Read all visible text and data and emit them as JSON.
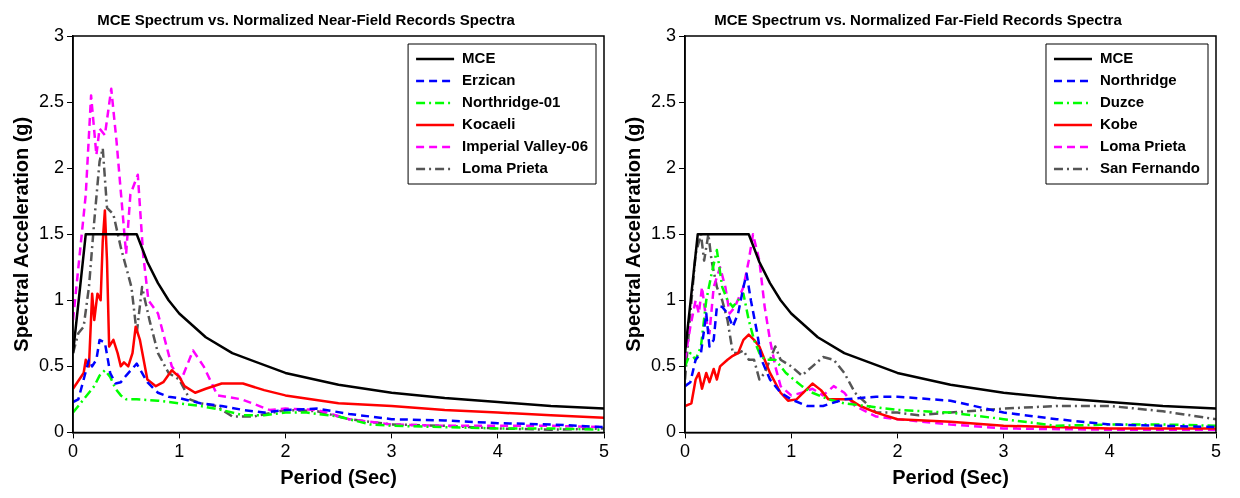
{
  "chart_data": [
    {
      "type": "line",
      "title": "MCE Spectrum vs. Normalized Near-Field Records Spectra",
      "xlabel": "Period (Sec)",
      "ylabel": "Spectral Acceleration (g)",
      "xlim": [
        0,
        5
      ],
      "ylim": [
        0,
        3
      ],
      "xticks": [
        0,
        1,
        2,
        3,
        4,
        5
      ],
      "yticks": [
        0,
        0.5,
        1,
        1.5,
        2,
        2.5,
        3
      ],
      "legend": "top right",
      "series": [
        {
          "name": "MCE",
          "color": "#000000",
          "line_style": "solid",
          "x": [
            0,
            0.12,
            0.6,
            0.7,
            0.8,
            0.9,
            1,
            1.25,
            1.5,
            2,
            2.5,
            3,
            3.5,
            4,
            4.5,
            5
          ],
          "values": [
            0.6,
            1.5,
            1.5,
            1.29,
            1.13,
            1.0,
            0.9,
            0.72,
            0.6,
            0.45,
            0.36,
            0.3,
            0.26,
            0.23,
            0.2,
            0.18
          ]
        },
        {
          "name": "Erzican",
          "color": "#0000ff",
          "line_style": "dashed",
          "x": [
            0,
            0.05,
            0.1,
            0.15,
            0.18,
            0.22,
            0.25,
            0.3,
            0.35,
            0.4,
            0.45,
            0.5,
            0.6,
            0.65,
            0.7,
            0.8,
            0.9,
            1.0,
            1.2,
            1.4,
            1.6,
            1.8,
            2,
            2.3,
            2.6,
            3,
            3.5,
            4,
            4.5,
            5
          ],
          "values": [
            0.23,
            0.25,
            0.4,
            0.55,
            0.5,
            0.55,
            0.7,
            0.68,
            0.45,
            0.37,
            0.38,
            0.43,
            0.52,
            0.45,
            0.38,
            0.3,
            0.27,
            0.26,
            0.22,
            0.2,
            0.17,
            0.15,
            0.17,
            0.18,
            0.14,
            0.1,
            0.09,
            0.07,
            0.06,
            0.04
          ]
        },
        {
          "name": "Northridge-01",
          "color": "#00ff00",
          "line_style": "dashdot",
          "x": [
            0,
            0.05,
            0.1,
            0.15,
            0.2,
            0.25,
            0.3,
            0.35,
            0.4,
            0.45,
            0.5,
            0.6,
            0.8,
            1.0,
            1.2,
            1.4,
            1.6,
            1.8,
            2.0,
            2.2,
            2.5,
            2.8,
            3,
            3.5,
            4,
            4.5,
            5
          ],
          "values": [
            0.15,
            0.2,
            0.25,
            0.3,
            0.35,
            0.43,
            0.47,
            0.42,
            0.33,
            0.28,
            0.25,
            0.25,
            0.24,
            0.22,
            0.2,
            0.17,
            0.13,
            0.13,
            0.15,
            0.15,
            0.12,
            0.06,
            0.05,
            0.04,
            0.03,
            0.03,
            0.02
          ]
        },
        {
          "name": "Kocaeli",
          "color": "#ff0000",
          "line_style": "solid",
          "x": [
            0,
            0.1,
            0.12,
            0.15,
            0.18,
            0.2,
            0.23,
            0.26,
            0.28,
            0.3,
            0.32,
            0.34,
            0.38,
            0.42,
            0.45,
            0.48,
            0.52,
            0.56,
            0.59,
            0.63,
            0.7,
            0.78,
            0.85,
            0.93,
            1.0,
            1.05,
            1.15,
            1.25,
            1.4,
            1.6,
            1.8,
            2,
            2.5,
            3,
            3.5,
            4,
            4.5,
            5
          ],
          "values": [
            0.33,
            0.45,
            0.55,
            0.5,
            1.05,
            0.85,
            1.05,
            1.0,
            1.45,
            1.68,
            1.3,
            0.65,
            0.7,
            0.6,
            0.5,
            0.53,
            0.5,
            0.6,
            0.8,
            0.7,
            0.4,
            0.35,
            0.38,
            0.47,
            0.42,
            0.35,
            0.3,
            0.33,
            0.37,
            0.37,
            0.32,
            0.28,
            0.22,
            0.2,
            0.17,
            0.15,
            0.13,
            0.11
          ]
        },
        {
          "name": "Imperial Valley-06",
          "color": "#ff00ff",
          "line_style": "dashed",
          "x": [
            0,
            0.12,
            0.17,
            0.22,
            0.25,
            0.3,
            0.36,
            0.41,
            0.5,
            0.54,
            0.61,
            0.66,
            0.71,
            0.8,
            0.93,
            1.02,
            1.13,
            1.23,
            1.36,
            1.59,
            1.85,
            2.0,
            2.3,
            2.6,
            3,
            3.5,
            4,
            4.5,
            5
          ],
          "values": [
            0.85,
            1.8,
            2.55,
            2.1,
            2.3,
            2.25,
            2.6,
            2.2,
            1.35,
            1.8,
            1.95,
            1.35,
            1.0,
            0.9,
            0.5,
            0.4,
            0.62,
            0.5,
            0.28,
            0.25,
            0.17,
            0.18,
            0.17,
            0.1,
            0.06,
            0.05,
            0.05,
            0.05,
            0.04
          ]
        },
        {
          "name": "Loma Prieta",
          "color": "#555555",
          "line_style": "dashdot",
          "x": [
            0,
            0.05,
            0.1,
            0.15,
            0.2,
            0.25,
            0.28,
            0.32,
            0.38,
            0.45,
            0.5,
            0.55,
            0.6,
            0.65,
            0.72,
            0.8,
            0.9,
            1.0,
            1.1,
            1.2,
            1.35,
            1.5,
            1.7,
            2,
            2.3,
            2.6,
            3,
            3.5,
            4,
            4.5,
            5
          ],
          "values": [
            0.6,
            0.75,
            0.8,
            1.1,
            1.6,
            2.05,
            2.15,
            1.7,
            1.65,
            1.4,
            1.25,
            1.1,
            0.75,
            1.1,
            0.85,
            0.6,
            0.45,
            0.4,
            0.25,
            0.22,
            0.2,
            0.12,
            0.12,
            0.17,
            0.16,
            0.1,
            0.06,
            0.05,
            0.03,
            0.02,
            0.03
          ]
        }
      ]
    },
    {
      "type": "line",
      "title": "MCE Spectrum vs. Normalized Far-Field Records Spectra",
      "xlabel": "Period (Sec)",
      "ylabel": "Spectral Acceleration (g)",
      "xlim": [
        0,
        5
      ],
      "ylim": [
        0,
        3
      ],
      "xticks": [
        0,
        1,
        2,
        3,
        4,
        5
      ],
      "yticks": [
        0,
        0.5,
        1,
        1.5,
        2,
        2.5,
        3
      ],
      "legend": "top right",
      "series": [
        {
          "name": "MCE",
          "color": "#000000",
          "line_style": "solid",
          "x": [
            0,
            0.12,
            0.6,
            0.7,
            0.8,
            0.9,
            1,
            1.25,
            1.5,
            2,
            2.5,
            3,
            3.5,
            4,
            4.5,
            5
          ],
          "values": [
            0.6,
            1.5,
            1.5,
            1.29,
            1.13,
            1.0,
            0.9,
            0.72,
            0.6,
            0.45,
            0.36,
            0.3,
            0.26,
            0.23,
            0.2,
            0.18
          ]
        },
        {
          "name": "Northridge",
          "color": "#0000ff",
          "line_style": "dashed",
          "x": [
            0,
            0.05,
            0.1,
            0.15,
            0.2,
            0.23,
            0.27,
            0.3,
            0.35,
            0.4,
            0.45,
            0.5,
            0.55,
            0.58,
            0.62,
            0.68,
            0.72,
            0.8,
            0.9,
            1.0,
            1.15,
            1.3,
            1.5,
            1.8,
            2,
            2.5,
            3,
            3.5,
            4,
            4.5,
            5
          ],
          "values": [
            0.35,
            0.38,
            0.55,
            0.6,
            0.9,
            0.65,
            0.7,
            0.95,
            0.95,
            0.9,
            0.8,
            0.9,
            1.1,
            1.2,
            1.0,
            0.75,
            0.55,
            0.4,
            0.3,
            0.25,
            0.2,
            0.2,
            0.25,
            0.27,
            0.27,
            0.24,
            0.15,
            0.1,
            0.06,
            0.05,
            0.04
          ]
        },
        {
          "name": "Duzce",
          "color": "#00ff00",
          "line_style": "dashdot",
          "x": [
            0,
            0.05,
            0.1,
            0.15,
            0.2,
            0.25,
            0.3,
            0.35,
            0.4,
            0.45,
            0.5,
            0.55,
            0.6,
            0.65,
            0.7,
            0.75,
            0.85,
            0.95,
            1.1,
            1.2,
            1.35,
            1.5,
            1.7,
            2,
            2.5,
            3,
            3.5,
            4,
            4.5,
            5
          ],
          "values": [
            0.5,
            0.6,
            0.55,
            0.65,
            1.0,
            1.2,
            1.38,
            1.1,
            1.0,
            0.95,
            1.0,
            1.05,
            0.85,
            0.7,
            0.6,
            0.55,
            0.55,
            0.45,
            0.35,
            0.3,
            0.25,
            0.22,
            0.2,
            0.17,
            0.15,
            0.1,
            0.05,
            0.06,
            0.06,
            0.05
          ]
        },
        {
          "name": "Kobe",
          "color": "#ff0000",
          "line_style": "solid",
          "x": [
            0,
            0.06,
            0.1,
            0.13,
            0.16,
            0.2,
            0.23,
            0.27,
            0.3,
            0.33,
            0.4,
            0.45,
            0.5,
            0.55,
            0.6,
            0.65,
            0.7,
            0.75,
            0.8,
            0.9,
            0.97,
            1.05,
            1.15,
            1.2,
            1.28,
            1.35,
            1.45,
            1.55,
            1.65,
            1.8,
            2,
            2.5,
            3,
            4,
            5
          ],
          "values": [
            0.2,
            0.22,
            0.4,
            0.45,
            0.33,
            0.45,
            0.38,
            0.48,
            0.4,
            0.5,
            0.55,
            0.58,
            0.6,
            0.7,
            0.74,
            0.7,
            0.65,
            0.55,
            0.45,
            0.3,
            0.24,
            0.25,
            0.33,
            0.37,
            0.32,
            0.25,
            0.25,
            0.25,
            0.2,
            0.15,
            0.1,
            0.08,
            0.05,
            0.03,
            0.03
          ]
        },
        {
          "name": "Loma Prieta",
          "color": "#ff00ff",
          "line_style": "dashed",
          "x": [
            0,
            0.05,
            0.1,
            0.13,
            0.16,
            0.2,
            0.23,
            0.27,
            0.33,
            0.38,
            0.42,
            0.47,
            0.55,
            0.6,
            0.64,
            0.7,
            0.75,
            0.8,
            0.85,
            0.9,
            1.0,
            1.1,
            1.2,
            1.3,
            1.4,
            1.5,
            1.6,
            1.8,
            2,
            2.5,
            3,
            4,
            5
          ],
          "values": [
            0.55,
            0.8,
            1.0,
            0.9,
            1.1,
            0.85,
            0.75,
            1.1,
            1.25,
            1.1,
            0.9,
            0.95,
            1.1,
            1.3,
            1.5,
            1.3,
            0.95,
            0.7,
            0.5,
            0.35,
            0.28,
            0.3,
            0.33,
            0.28,
            0.35,
            0.3,
            0.2,
            0.12,
            0.1,
            0.06,
            0.03,
            0.02,
            0.02
          ]
        },
        {
          "name": "San Fernando",
          "color": "#555555",
          "line_style": "dashdot",
          "x": [
            0,
            0.05,
            0.1,
            0.15,
            0.18,
            0.22,
            0.25,
            0.3,
            0.35,
            0.4,
            0.45,
            0.5,
            0.55,
            0.6,
            0.65,
            0.7,
            0.75,
            0.8,
            0.85,
            0.9,
            1.0,
            1.1,
            1.2,
            1.3,
            1.4,
            1.5,
            1.6,
            1.8,
            2,
            2.2,
            2.5,
            3,
            3.5,
            4,
            4.5,
            5
          ],
          "values": [
            0.4,
            0.9,
            1.35,
            1.5,
            1.3,
            1.5,
            1.3,
            1.1,
            1.0,
            0.85,
            0.6,
            0.6,
            0.62,
            0.55,
            0.55,
            0.4,
            0.45,
            0.55,
            0.65,
            0.55,
            0.5,
            0.43,
            0.5,
            0.57,
            0.55,
            0.45,
            0.3,
            0.15,
            0.15,
            0.13,
            0.15,
            0.18,
            0.2,
            0.2,
            0.16,
            0.1
          ]
        }
      ]
    }
  ]
}
